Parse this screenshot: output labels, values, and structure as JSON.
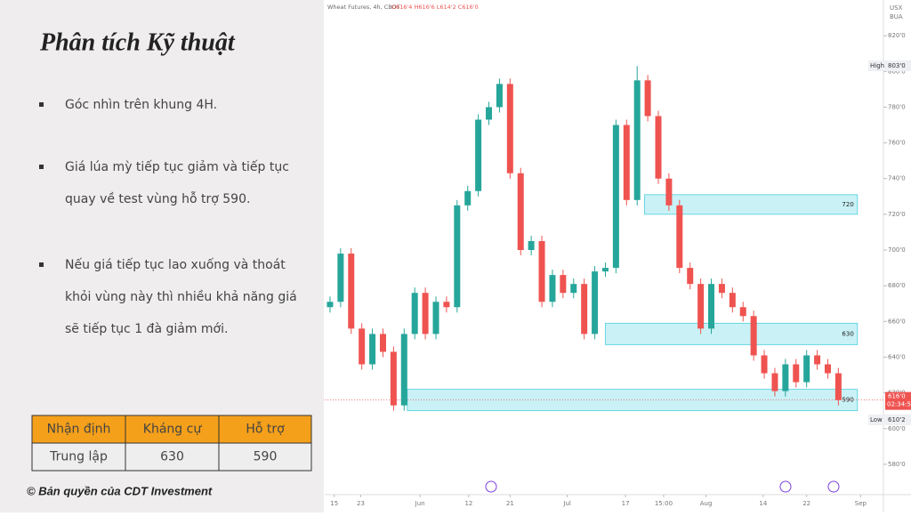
{
  "slide": {
    "title": "Phân tích Kỹ thuật",
    "bullets": [
      [
        "Góc nhìn trên khung 4H."
      ],
      [
        "Giá lúa mỳ tiếp tục giảm và tiếp tục",
        "quay về test vùng hỗ trợ 590."
      ],
      [
        "Nếu giá tiếp tục lao xuống và thoát",
        "khỏi vùng này thì nhiều khả năng giá",
        "sẽ tiếp tục 1 đà giảm mới."
      ]
    ],
    "table": {
      "header": [
        "Nhận định",
        "Kháng cự",
        "Hỗ trợ"
      ],
      "rows": [
        [
          "Trung lập",
          "630",
          "590"
        ]
      ]
    },
    "footer": "© Bản quyền của CDT Investment"
  },
  "chart_data": {
    "type": "candlestick",
    "title": "Wheat Futures, 4h, CBOT",
    "ohlc_text": "O616'4 H616'6 L614'2 C616'0",
    "currency": [
      "USX",
      "BUA"
    ],
    "open": [
      668,
      671,
      698,
      656,
      636,
      653,
      643,
      613,
      653,
      676,
      653,
      671,
      668,
      725,
      733,
      773,
      780,
      793,
      743,
      700,
      705,
      671,
      686,
      676,
      681,
      653,
      688,
      690,
      770,
      728,
      795,
      775,
      740,
      725,
      690,
      681,
      656,
      681,
      676,
      668,
      663,
      641,
      631,
      621,
      636,
      626,
      641,
      636,
      631
    ],
    "high": [
      674,
      701,
      701,
      659,
      656,
      656,
      646,
      656,
      679,
      679,
      674,
      674,
      728,
      736,
      776,
      783,
      796,
      796,
      746,
      708,
      708,
      689,
      689,
      684,
      684,
      691,
      693,
      773,
      773,
      803,
      798,
      778,
      743,
      728,
      693,
      684,
      684,
      684,
      679,
      671,
      666,
      644,
      634,
      639,
      639,
      644,
      644,
      639,
      634
    ],
    "low": [
      665,
      668,
      653,
      633,
      633,
      640,
      610,
      610,
      650,
      650,
      650,
      665,
      665,
      722,
      730,
      770,
      777,
      740,
      697,
      697,
      668,
      668,
      673,
      673,
      650,
      650,
      685,
      687,
      725,
      725,
      772,
      737,
      722,
      687,
      678,
      653,
      653,
      673,
      665,
      660,
      638,
      628,
      618,
      618,
      623,
      623,
      633,
      628,
      613
    ],
    "close": [
      671,
      698,
      656,
      636,
      653,
      643,
      613,
      653,
      676,
      653,
      671,
      668,
      725,
      733,
      773,
      780,
      793,
      743,
      700,
      705,
      671,
      686,
      676,
      681,
      653,
      688,
      690,
      770,
      728,
      795,
      775,
      740,
      725,
      690,
      681,
      656,
      681,
      676,
      668,
      663,
      641,
      631,
      621,
      636,
      626,
      641,
      636,
      631,
      616
    ],
    "up_color": "#26a69a",
    "down_color": "#ef5350",
    "xlim": [
      -0.5,
      52
    ],
    "ylim": [
      567,
      840
    ],
    "xticks": [
      {
        "value": 0.4,
        "label": "15"
      },
      {
        "value": 2.9,
        "label": "23"
      },
      {
        "value": 8.5,
        "label": "Jun"
      },
      {
        "value": 13.1,
        "label": "12"
      },
      {
        "value": 17,
        "label": "21"
      },
      {
        "value": 22.4,
        "label": "Jul"
      },
      {
        "value": 27.9,
        "label": "17"
      },
      {
        "value": 31.5,
        "label": "15:00"
      },
      {
        "value": 35.5,
        "label": "Aug"
      },
      {
        "value": 40.9,
        "label": "14"
      },
      {
        "value": 45,
        "label": "22"
      },
      {
        "value": 50.1,
        "label": "Sep"
      }
    ],
    "yticks": [
      {
        "value": 580,
        "label": "580'0"
      },
      {
        "value": 600,
        "label": "600'0"
      },
      {
        "value": 620,
        "label": "620'0"
      },
      {
        "value": 640,
        "label": "640'0"
      },
      {
        "value": 660,
        "label": "660'0"
      },
      {
        "value": 680,
        "label": "680'0"
      },
      {
        "value": 700,
        "label": "700'0"
      },
      {
        "value": 720,
        "label": "720'0"
      },
      {
        "value": 740,
        "label": "740'0"
      },
      {
        "value": 760,
        "label": "760'0"
      },
      {
        "value": 780,
        "label": "780'0"
      },
      {
        "value": 800,
        "label": "800'0"
      },
      {
        "value": 820,
        "label": "820'0"
      }
    ],
    "zones": [
      {
        "label": "720",
        "low": 720,
        "high": 731,
        "start": 29.7,
        "end": 49.8
      },
      {
        "label": "630",
        "low": 647,
        "high": 659,
        "start": 26,
        "end": 49.8
      },
      {
        "label": "590",
        "low": 610,
        "high": 622,
        "start": 7.3,
        "end": 49.8
      }
    ],
    "high_marker": {
      "label": "High",
      "value": 803,
      "value_label": "803'0"
    },
    "low_marker": {
      "label": "Low",
      "value": 610.2,
      "value_label": "610'2"
    },
    "last": {
      "value": 616,
      "value_label": "616'0",
      "countdown": "02:34:59"
    }
  }
}
